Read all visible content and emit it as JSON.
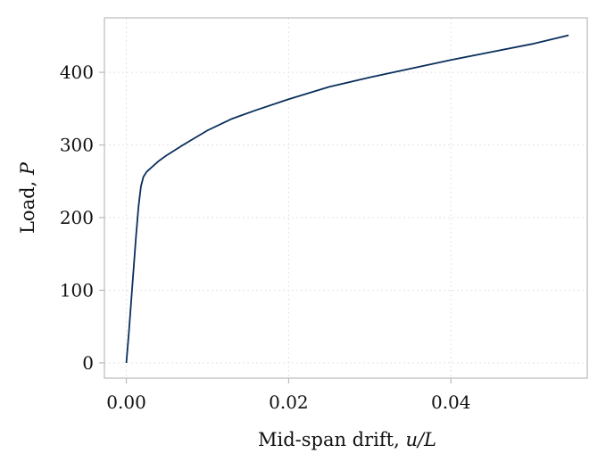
{
  "chart_data": {
    "type": "line",
    "title": "",
    "xlabel_text": "Mid-span drift, ",
    "xlabel_var": "u/L",
    "ylabel_text": "Load, ",
    "ylabel_var": "P",
    "xlim": [
      -0.0027,
      0.0568
    ],
    "ylim": [
      -21,
      475
    ],
    "xticks": [
      0.0,
      0.02,
      0.04
    ],
    "xtick_labels": [
      "0.00",
      "0.02",
      "0.04"
    ],
    "yticks": [
      0,
      100,
      200,
      300,
      400
    ],
    "ytick_labels": [
      "0",
      "100",
      "200",
      "300",
      "400"
    ],
    "grid": true,
    "legend": "none",
    "colors": {
      "line": "#0a2f5c",
      "frame": "#bbbbbb",
      "grid": "#e3e3e3"
    },
    "series": [
      {
        "x": [
          0.0,
          0.0003,
          0.0006,
          0.0009,
          0.0012,
          0.0015,
          0.0018,
          0.0021,
          0.0025,
          0.003,
          0.004,
          0.005,
          0.007,
          0.01,
          0.013,
          0.016,
          0.02,
          0.025,
          0.03,
          0.035,
          0.04,
          0.045,
          0.05,
          0.0545
        ],
        "y": [
          0,
          40,
          85,
          130,
          175,
          215,
          243,
          256,
          263,
          268,
          278,
          286,
          300,
          320,
          336,
          348,
          363,
          380,
          393,
          405,
          417,
          428,
          439,
          451
        ]
      }
    ]
  }
}
